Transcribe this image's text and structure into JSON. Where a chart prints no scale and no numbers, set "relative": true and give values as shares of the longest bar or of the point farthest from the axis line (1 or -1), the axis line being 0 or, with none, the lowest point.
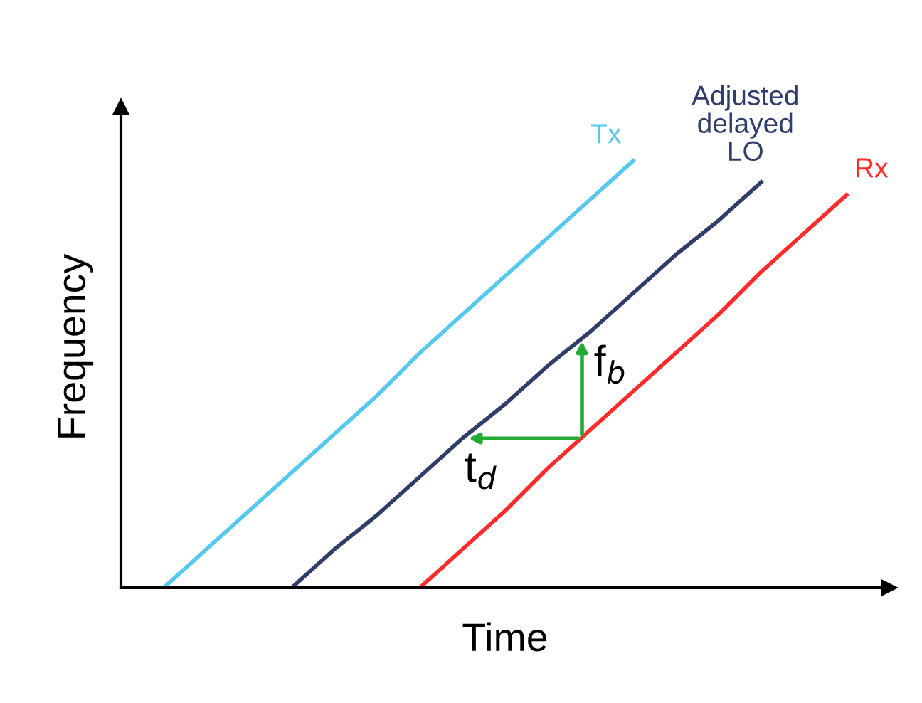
{
  "chart_data": {
    "type": "line",
    "relative": true,
    "xlabel": "Time",
    "ylabel": "Frequency",
    "marker": "none",
    "line_style": "solid",
    "categories": [
      null,
      null,
      null,
      null,
      null,
      null,
      null,
      null,
      null,
      null,
      null,
      null,
      null,
      null,
      null,
      null,
      null,
      null,
      null
    ],
    "series": [
      {
        "name": "Tx",
        "color": "#55c8f0",
        "values": [
          null,
          0,
          0.09,
          0.18,
          0.27,
          0.36,
          0.45,
          0.55,
          0.64,
          0.73,
          0.82,
          0.91,
          1.0,
          null,
          null,
          null,
          null,
          null,
          null
        ]
      },
      {
        "name": "Adjusted delayed LO",
        "color": "#2f3d6b",
        "values": [
          null,
          null,
          null,
          null,
          0,
          0.09,
          0.17,
          0.26,
          0.35,
          0.43,
          0.52,
          0.6,
          0.69,
          0.78,
          0.86,
          0.95,
          null,
          null,
          null
        ]
      },
      {
        "name": "Rx",
        "color": "#ff2a2a",
        "values": [
          null,
          null,
          null,
          null,
          null,
          null,
          null,
          0,
          0.09,
          0.18,
          0.28,
          0.37,
          0.46,
          0.55,
          0.64,
          0.74,
          0.83,
          0.92,
          null
        ]
      }
    ],
    "annotations": [
      "t$_{d}$",
      "f$_{b}$"
    ]
  }
}
